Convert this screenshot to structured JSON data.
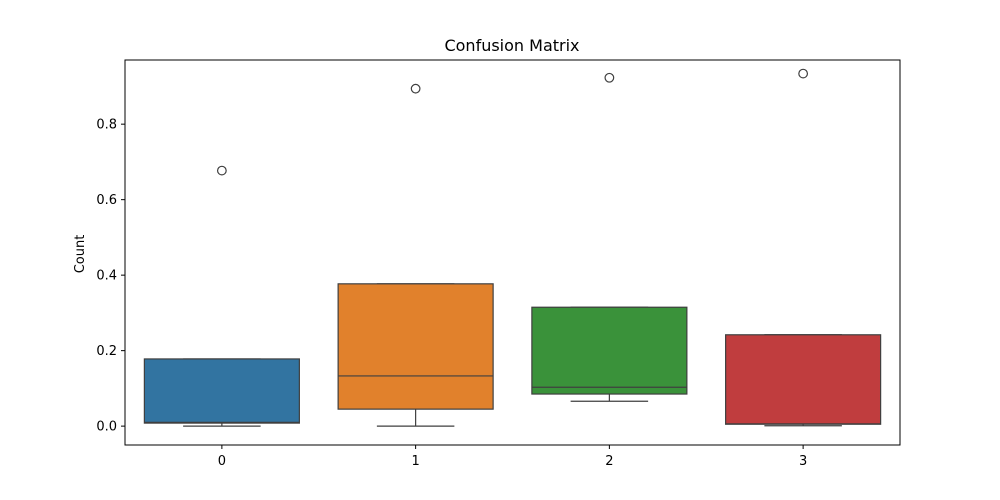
{
  "chart_data": {
    "type": "box",
    "title": "Confusion Matrix",
    "xlabel": "",
    "ylabel": "Count",
    "ylim": [
      -0.05,
      0.97
    ],
    "yticks": [
      "0.0",
      "0.2",
      "0.4",
      "0.6",
      "0.8"
    ],
    "grid": false,
    "categories": [
      "0",
      "1",
      "2",
      "3"
    ],
    "boxes": [
      {
        "category": "0",
        "color": "#3274a1",
        "whisker_low": 0.0,
        "q1": 0.008,
        "median": 0.01,
        "q3": 0.178,
        "whisker_high": 0.178,
        "outliers": [
          0.677
        ]
      },
      {
        "category": "1",
        "color": "#e1812c",
        "whisker_low": 0.0,
        "q1": 0.045,
        "median": 0.133,
        "q3": 0.377,
        "whisker_high": 0.377,
        "outliers": [
          0.894
        ]
      },
      {
        "category": "2",
        "color": "#3a923a",
        "whisker_low": 0.066,
        "q1": 0.085,
        "median": 0.103,
        "q3": 0.315,
        "whisker_high": 0.315,
        "outliers": [
          0.923
        ]
      },
      {
        "category": "3",
        "color": "#c03d3e",
        "whisker_low": 0.001,
        "q1": 0.005,
        "median": 0.006,
        "q3": 0.242,
        "whisker_high": 0.242,
        "outliers": [
          0.934
        ]
      }
    ]
  }
}
